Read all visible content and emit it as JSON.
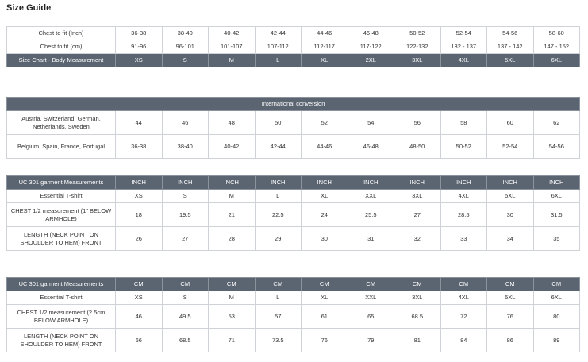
{
  "title": "Size Guide",
  "tables": [
    {
      "rows": [
        [
          "Chest to fit (Inch)",
          "36-38",
          "38-40",
          "40-42",
          "42-44",
          "44-46",
          "46-48",
          "50-52",
          "52-54",
          "54-56",
          "58-60"
        ],
        [
          "Chest to fit (cm)",
          "91-96",
          "96-101",
          "101-107",
          "107-112",
          "112-117",
          "117-122",
          "122-132",
          "132 - 137",
          "137 - 142",
          "147 - 152"
        ]
      ],
      "header": [
        "Size Chart - Body Measurement",
        "XS",
        "S",
        "M",
        "L",
        "XL",
        "2XL",
        "3XL",
        "4XL",
        "5XL",
        "6XL"
      ]
    },
    {
      "header": "International conversion",
      "rows": [
        [
          "Austria, Switzerland, German, Netherlands, Sweden",
          44,
          46,
          48,
          50,
          52,
          54,
          56,
          58,
          60,
          62
        ],
        [
          "Belgium, Spain, France, Portugal",
          "36-38",
          "38-40",
          "40-42",
          "42-44",
          "44-46",
          "46-48",
          "48-50",
          "50-52",
          "52-54",
          "54-56"
        ]
      ]
    },
    {
      "header": [
        "UC 301 garment Measurements",
        "INCH",
        "INCH",
        "INCH",
        "INCH",
        "INCH",
        "INCH",
        "INCH",
        "INCH",
        "INCH",
        "INCH"
      ],
      "rows": [
        [
          "Essential T-shirt",
          "XS",
          "S",
          "M",
          "L",
          "XL",
          "XXL",
          "3XL",
          "4XL",
          "5XL",
          "6XL"
        ],
        [
          "CHEST 1/2 measurement (1\" BELOW ARMHOLE)",
          18,
          19.5,
          21,
          22.5,
          24,
          25.5,
          27,
          28.5,
          30,
          31.5
        ],
        [
          "LENGTH (NECK POINT ON SHOULDER TO HEM) FRONT",
          26,
          27,
          28,
          29,
          30,
          31,
          32,
          33,
          34,
          35
        ]
      ]
    },
    {
      "header": [
        "UC 301 garment Measurements",
        "CM",
        "CM",
        "CM",
        "CM",
        "CM",
        "CM",
        "CM",
        "CM",
        "CM",
        "CM"
      ],
      "rows": [
        [
          "Essential T-shirt",
          "XS",
          "S",
          "M",
          "L",
          "XL",
          "XXL",
          "3XL",
          "4XL",
          "5XL",
          "6XL"
        ],
        [
          "CHEST 1/2 measurement (2.5cm BELOW ARMHOLE)",
          46,
          49.5,
          53,
          57,
          61,
          65,
          68.5,
          72,
          76,
          80
        ],
        [
          "LENGTH (NECK POINT ON SHOULDER TO HEM) FRONT",
          66,
          68.5,
          71,
          73.5,
          76,
          79,
          81,
          84,
          86,
          89
        ]
      ]
    }
  ]
}
